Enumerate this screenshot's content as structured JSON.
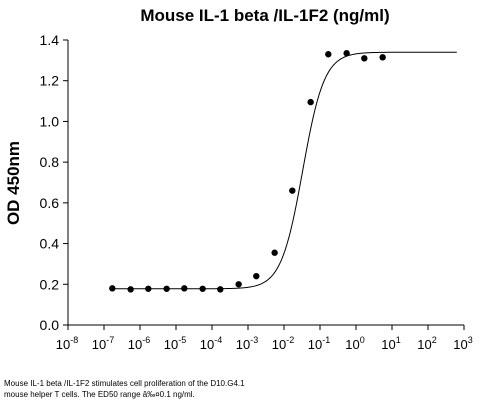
{
  "chart_data": {
    "type": "scatter",
    "title": "Mouse IL-1 beta /IL-1F2 (ng/ml)",
    "xlabel": "",
    "ylabel": "OD 450nm",
    "xscale": "log",
    "xlim": [
      1e-08,
      1000
    ],
    "ylim": [
      0,
      1.4
    ],
    "yticks": [
      "0.0",
      "0.2",
      "0.4",
      "0.6",
      "0.8",
      "1.0",
      "1.2",
      "1.4"
    ],
    "xticks": [
      {
        "base": "10",
        "exp": "-8"
      },
      {
        "base": "10",
        "exp": "-7"
      },
      {
        "base": "10",
        "exp": "-6"
      },
      {
        "base": "10",
        "exp": "-5"
      },
      {
        "base": "10",
        "exp": "-4"
      },
      {
        "base": "10",
        "exp": "-3"
      },
      {
        "base": "10",
        "exp": "-2"
      },
      {
        "base": "10",
        "exp": "-1"
      },
      {
        "base": "10",
        "exp": "0"
      },
      {
        "base": "10",
        "exp": "1"
      },
      {
        "base": "10",
        "exp": "2"
      },
      {
        "base": "10",
        "exp": "3"
      }
    ],
    "grid": false,
    "points": [
      {
        "x": 1.7e-07,
        "y": 0.18
      },
      {
        "x": 5.5e-07,
        "y": 0.175
      },
      {
        "x": 1.7e-06,
        "y": 0.178
      },
      {
        "x": 5.5e-06,
        "y": 0.178
      },
      {
        "x": 1.7e-05,
        "y": 0.18
      },
      {
        "x": 5.5e-05,
        "y": 0.178
      },
      {
        "x": 0.00017,
        "y": 0.175
      },
      {
        "x": 0.00055,
        "y": 0.2
      },
      {
        "x": 0.0017,
        "y": 0.24
      },
      {
        "x": 0.0055,
        "y": 0.355
      },
      {
        "x": 0.017,
        "y": 0.66
      },
      {
        "x": 0.055,
        "y": 1.095
      },
      {
        "x": 0.17,
        "y": 1.33
      },
      {
        "x": 0.55,
        "y": 1.335
      },
      {
        "x": 1.7,
        "y": 1.31
      },
      {
        "x": 5.5,
        "y": 1.315
      }
    ],
    "fit": {
      "bottom": 0.178,
      "top": 1.34,
      "log_ec50": -1.48,
      "hill": 1.45
    }
  },
  "caption": {
    "line1": "Mouse IL-1 beta /IL-1F2 stimulates cell proliferation of the D10.G4.1",
    "line2": "mouse helper T cells. The ED50 range â‰¤0.1 ng/ml."
  }
}
